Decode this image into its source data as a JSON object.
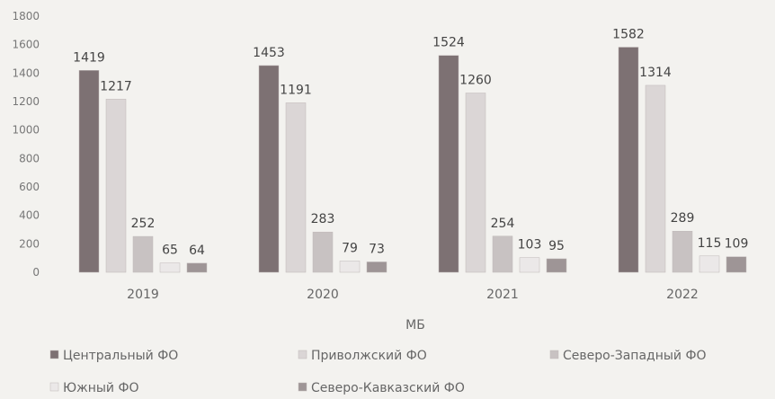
{
  "chart_data": {
    "type": "bar",
    "categories": [
      "2019",
      "2020",
      "2021",
      "2022"
    ],
    "series": [
      {
        "name": "Центральный ФО",
        "values": [
          1419,
          1453,
          1524,
          1582
        ],
        "color": "#7d7173"
      },
      {
        "name": "Приволжский  ФО",
        "values": [
          1217,
          1191,
          1260,
          1314
        ],
        "color": "#dbd6d6"
      },
      {
        "name": "Северо-Западный  ФО",
        "values": [
          252,
          283,
          254,
          289
        ],
        "color": "#c8c2c2"
      },
      {
        "name": "Южный ФО",
        "values": [
          65,
          79,
          103,
          115
        ],
        "color": "#ebe8e8"
      },
      {
        "name": "Северо-Кавказский  ФО",
        "values": [
          64,
          73,
          95,
          109
        ],
        "color": "#9e9596"
      }
    ],
    "ylim": [
      0,
      1800
    ],
    "yticks": [
      0,
      200,
      400,
      600,
      800,
      1000,
      1200,
      1400,
      1600,
      1800
    ],
    "xlabel": "МБ",
    "title": "",
    "ylabel": "",
    "legend_position": "bottom",
    "grid": false
  }
}
